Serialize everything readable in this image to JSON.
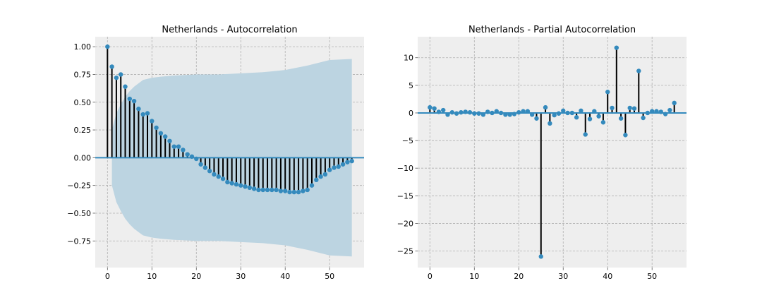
{
  "chart_data": [
    {
      "type": "stem",
      "title": "Netherlands - Autocorrelation",
      "xlabel": "",
      "ylabel": "",
      "xlim": [
        -2.75,
        57.75
      ],
      "ylim": [
        -0.99,
        1.09
      ],
      "xticks": [
        0,
        10,
        20,
        30,
        40,
        50
      ],
      "yticks": [
        1.0,
        0.75,
        0.5,
        0.25,
        0.0,
        -0.25,
        -0.5,
        -0.75
      ],
      "ytick_labels": [
        "1.00",
        "0.75",
        "0.50",
        "0.25",
        "0.00",
        "−0.25",
        "−0.50",
        "−0.75"
      ],
      "grid": true,
      "lags": [
        0,
        1,
        2,
        3,
        4,
        5,
        6,
        7,
        8,
        9,
        10,
        11,
        12,
        13,
        14,
        15,
        16,
        17,
        18,
        19,
        20,
        21,
        22,
        23,
        24,
        25,
        26,
        27,
        28,
        29,
        30,
        31,
        32,
        33,
        34,
        35,
        36,
        37,
        38,
        39,
        40,
        41,
        42,
        43,
        44,
        45,
        46,
        47,
        48,
        49,
        50,
        51,
        52,
        53,
        54,
        55
      ],
      "values": [
        1.0,
        0.82,
        0.72,
        0.75,
        0.64,
        0.53,
        0.51,
        0.44,
        0.39,
        0.4,
        0.33,
        0.27,
        0.22,
        0.19,
        0.15,
        0.1,
        0.1,
        0.07,
        0.03,
        0.01,
        -0.01,
        -0.06,
        -0.09,
        -0.12,
        -0.15,
        -0.17,
        -0.19,
        -0.22,
        -0.23,
        -0.24,
        -0.25,
        -0.26,
        -0.27,
        -0.28,
        -0.29,
        -0.29,
        -0.29,
        -0.29,
        -0.29,
        -0.3,
        -0.3,
        -0.31,
        -0.31,
        -0.31,
        -0.3,
        -0.29,
        -0.25,
        -0.2,
        -0.17,
        -0.15,
        -0.11,
        -0.09,
        -0.08,
        -0.06,
        -0.04,
        -0.03
      ],
      "confidence_band": {
        "lags": [
          1,
          2,
          3,
          4,
          5,
          6,
          7,
          8,
          10,
          12,
          15,
          20,
          25,
          30,
          35,
          40,
          45,
          50,
          55
        ],
        "upper": [
          0.25,
          0.4,
          0.48,
          0.55,
          0.6,
          0.64,
          0.67,
          0.7,
          0.72,
          0.73,
          0.74,
          0.75,
          0.75,
          0.76,
          0.77,
          0.79,
          0.83,
          0.88,
          0.89
        ],
        "lower": [
          -0.25,
          -0.4,
          -0.48,
          -0.55,
          -0.6,
          -0.64,
          -0.67,
          -0.7,
          -0.72,
          -0.73,
          -0.74,
          -0.75,
          -0.75,
          -0.76,
          -0.77,
          -0.79,
          -0.83,
          -0.88,
          -0.89
        ]
      },
      "colors": {
        "marker": "#348abd",
        "stem": "#000000",
        "band": "#bcd4e1",
        "zero_line": "#348abd",
        "background": "#eeeeee",
        "grid": "#b0b0b0"
      }
    },
    {
      "type": "stem",
      "title": "Netherlands - Partial Autocorrelation",
      "xlabel": "",
      "ylabel": "",
      "xlim": [
        -2.75,
        57.75
      ],
      "ylim": [
        -28,
        13.8
      ],
      "xticks": [
        0,
        10,
        20,
        30,
        40,
        50
      ],
      "yticks": [
        10,
        5,
        0,
        -5,
        -10,
        -15,
        -20,
        -25
      ],
      "ytick_labels": [
        "10",
        "5",
        "0",
        "−5",
        "−10",
        "−15",
        "−20",
        "−25"
      ],
      "grid": true,
      "lags": [
        0,
        1,
        2,
        3,
        4,
        5,
        6,
        7,
        8,
        9,
        10,
        11,
        12,
        13,
        14,
        15,
        16,
        17,
        18,
        19,
        20,
        21,
        22,
        23,
        24,
        25,
        26,
        27,
        28,
        29,
        30,
        31,
        32,
        33,
        34,
        35,
        36,
        37,
        38,
        39,
        40,
        41,
        42,
        43,
        44,
        45,
        46,
        47,
        48,
        49,
        50,
        51,
        52,
        53,
        54,
        55
      ],
      "values": [
        1.0,
        0.8,
        0.2,
        0.5,
        -0.3,
        0.1,
        -0.1,
        0.1,
        0.2,
        0.1,
        -0.1,
        -0.1,
        -0.3,
        0.2,
        0.0,
        0.3,
        0.0,
        -0.3,
        -0.3,
        -0.2,
        0.1,
        0.3,
        0.3,
        -0.3,
        -1.0,
        -26.0,
        1.0,
        -1.9,
        -0.4,
        -0.1,
        0.4,
        0.0,
        0.0,
        -0.8,
        0.4,
        -3.9,
        -1.1,
        0.3,
        -0.6,
        -1.7,
        3.8,
        0.9,
        11.8,
        -1.0,
        -4.0,
        0.9,
        0.8,
        7.6,
        -0.9,
        0.0,
        0.3,
        0.3,
        0.2,
        -0.2,
        0.5,
        1.8
      ],
      "colors": {
        "marker": "#348abd",
        "stem": "#000000",
        "zero_line": "#348abd",
        "background": "#eeeeee",
        "grid": "#b0b0b0"
      }
    }
  ]
}
